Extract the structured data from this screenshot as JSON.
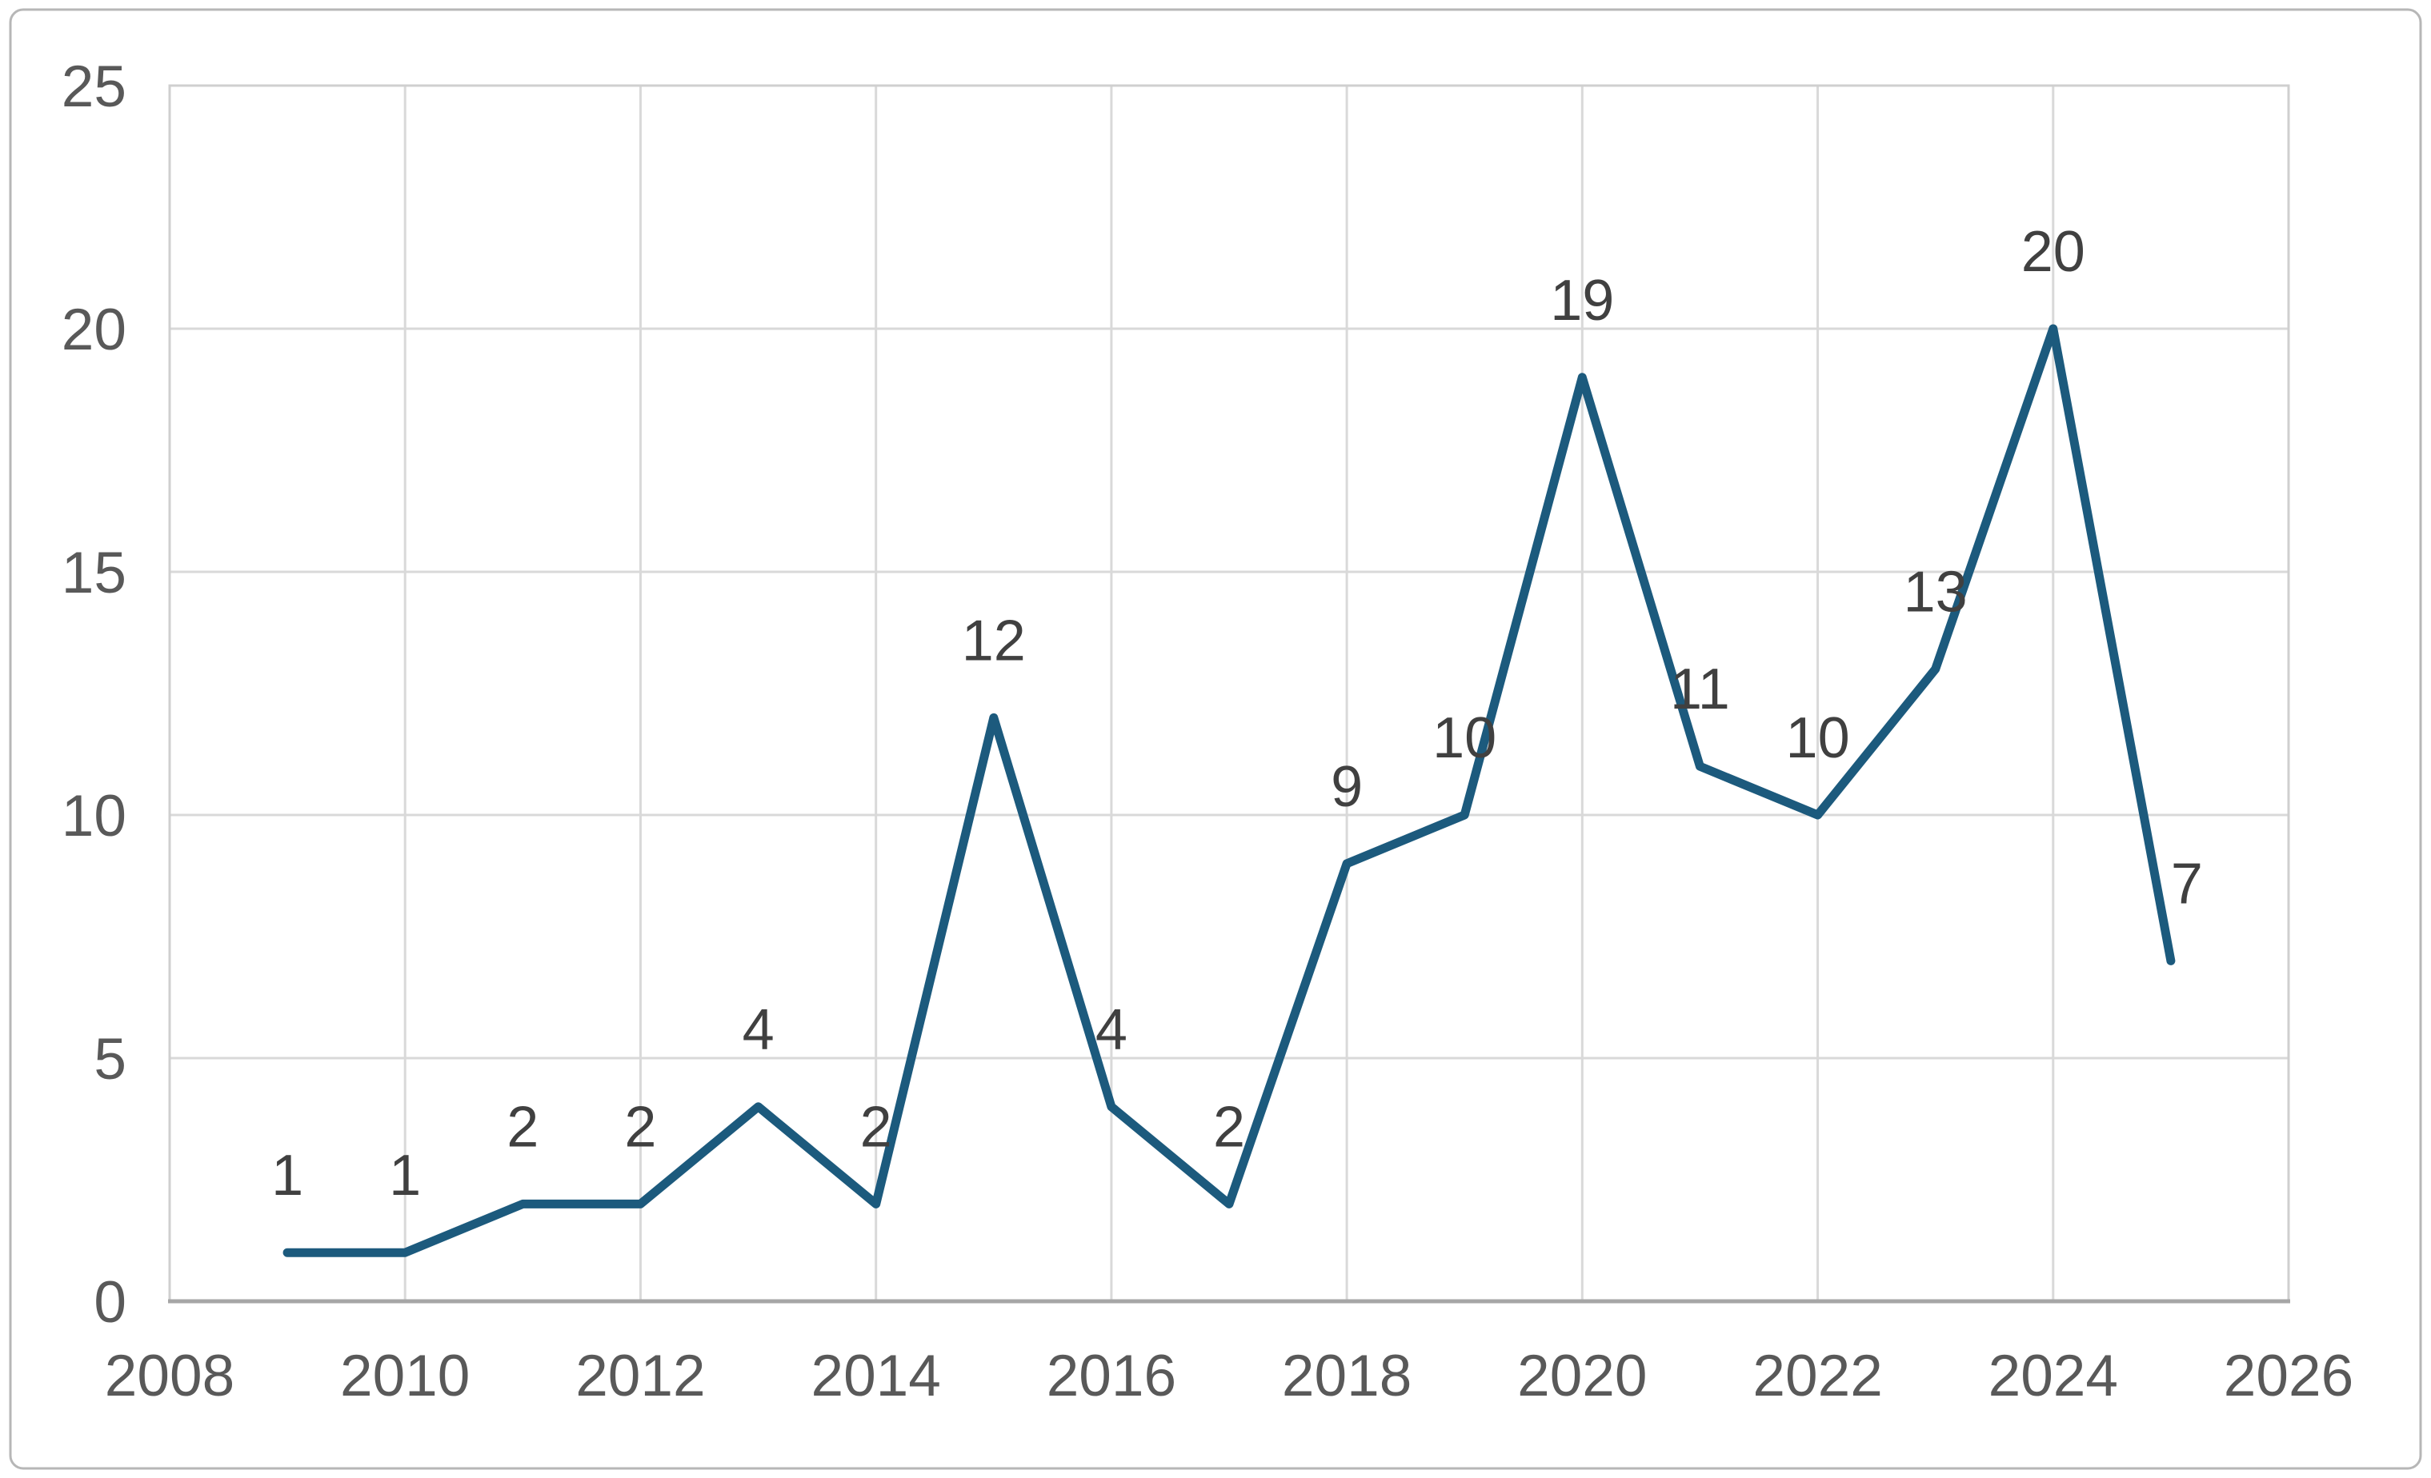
{
  "chart_data": {
    "type": "line",
    "title": "",
    "xlabel": "",
    "ylabel": "",
    "x": [
      2009,
      2010,
      2011,
      2012,
      2013,
      2014,
      2015,
      2016,
      2017,
      2018,
      2019,
      2020,
      2021,
      2022,
      2023,
      2024,
      2025
    ],
    "values": [
      1,
      1,
      2,
      2,
      4,
      2,
      12,
      4,
      2,
      9,
      10,
      19,
      11,
      10,
      13,
      20,
      7
    ],
    "data_labels": [
      "1",
      "1",
      "2",
      "2",
      "4",
      "2",
      "12",
      "4",
      "2",
      "9",
      "10",
      "19",
      "11",
      "10",
      "13",
      "20",
      "7"
    ],
    "xlim": [
      2008,
      2026
    ],
    "ylim": [
      0,
      25
    ],
    "x_tick_labels": [
      "2008",
      "2010",
      "2012",
      "2014",
      "2016",
      "2018",
      "2020",
      "2022",
      "2024",
      "2026"
    ],
    "x_tick_values": [
      2008,
      2010,
      2012,
      2014,
      2016,
      2018,
      2020,
      2022,
      2024,
      2026
    ],
    "y_tick_labels": [
      "0",
      "5",
      "10",
      "15",
      "20",
      "25"
    ],
    "y_tick_values": [
      0,
      5,
      10,
      15,
      20,
      25
    ],
    "grid": true,
    "legend": false,
    "colors": {
      "line": "#1C5A7D",
      "data_label": "#404040",
      "tick_label": "#595959",
      "gridline": "#D9D9D9",
      "plot_border": "#CFCFCF",
      "axis_line": "#A6A6A6",
      "outer_border": "#B7B7B7",
      "background": "#FFFFFF"
    }
  }
}
